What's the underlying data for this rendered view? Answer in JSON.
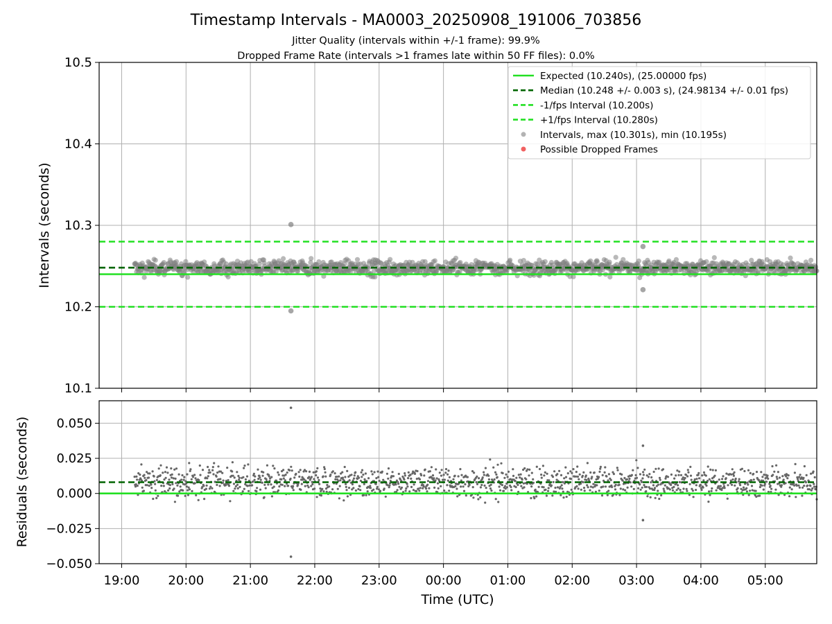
{
  "chart_data": {
    "type": "scatter",
    "title": "Timestamp Intervals - MA0003_20250908_191006_703856",
    "subtitle_lines": [
      "Jitter Quality (intervals within +/-1 frame): 99.9%",
      "Dropped Frame Rate (intervals >1 frames late within 50 FF files): 0.0%"
    ],
    "xlabel": "Time (UTC)",
    "x_ticks": [
      "19:00",
      "20:00",
      "21:00",
      "22:00",
      "23:00",
      "00:00",
      "01:00",
      "02:00",
      "03:00",
      "04:00",
      "05:00"
    ],
    "x_range_hours": [
      18.65,
      29.8
    ],
    "grid": true,
    "legend_position": "top-right",
    "colors": {
      "expected": "#22e022",
      "median": "#006400",
      "interval_lines": "#22e022",
      "points": "#808080",
      "dropped": "#f05050"
    },
    "top_panel": {
      "ylabel": "Intervals (seconds)",
      "ylim": [
        10.1,
        10.5
      ],
      "y_ticks": [
        "10.1",
        "10.2",
        "10.3",
        "10.4",
        "10.5"
      ],
      "y_tick_values": [
        10.1,
        10.2,
        10.3,
        10.4,
        10.5
      ],
      "expected": 10.24,
      "median": 10.248,
      "minus_interval": 10.2,
      "plus_interval": 10.28,
      "max_interval": 10.301,
      "min_interval": 10.195,
      "data_span_hours": [
        19.2,
        29.8
      ],
      "typical_range": [
        10.232,
        10.262
      ],
      "notable_points": [
        {
          "t": 21.63,
          "v": 10.301
        },
        {
          "t": 21.63,
          "v": 10.195
        },
        {
          "t": 27.1,
          "v": 10.274
        },
        {
          "t": 27.1,
          "v": 10.221
        }
      ]
    },
    "bottom_panel": {
      "ylabel": "Residuals (seconds)",
      "ylim": [
        -0.05,
        0.066
      ],
      "y_ticks": [
        "−0.050",
        "−0.025",
        "0.000",
        "0.025",
        "0.050"
      ],
      "y_tick_values": [
        -0.05,
        -0.025,
        0.0,
        0.025,
        0.05
      ],
      "zero_line": 0.0,
      "median_residual": 0.008,
      "typical_range": [
        -0.008,
        0.022
      ],
      "notable_points": [
        {
          "t": 21.63,
          "v": 0.061
        },
        {
          "t": 21.63,
          "v": -0.045
        },
        {
          "t": 27.1,
          "v": 0.034
        },
        {
          "t": 27.1,
          "v": -0.019
        }
      ]
    },
    "legend": [
      {
        "label": "Expected (10.240s), (25.00000 fps)",
        "style": "solid",
        "color": "#22e022"
      },
      {
        "label": "Median (10.248 +/- 0.003 s), (24.98134 +/- 0.01 fps)",
        "style": "dashed",
        "color": "#006400"
      },
      {
        "label": "-1/fps Interval (10.200s)",
        "style": "dashed",
        "color": "#22e022"
      },
      {
        "label": "+1/fps Interval (10.280s)",
        "style": "dashed",
        "color": "#22e022"
      },
      {
        "label": "Intervals, max (10.301s), min (10.195s)",
        "style": "marker",
        "color": "#808080"
      },
      {
        "label": "Possible Dropped Frames",
        "style": "marker",
        "color": "#f05050"
      }
    ]
  }
}
